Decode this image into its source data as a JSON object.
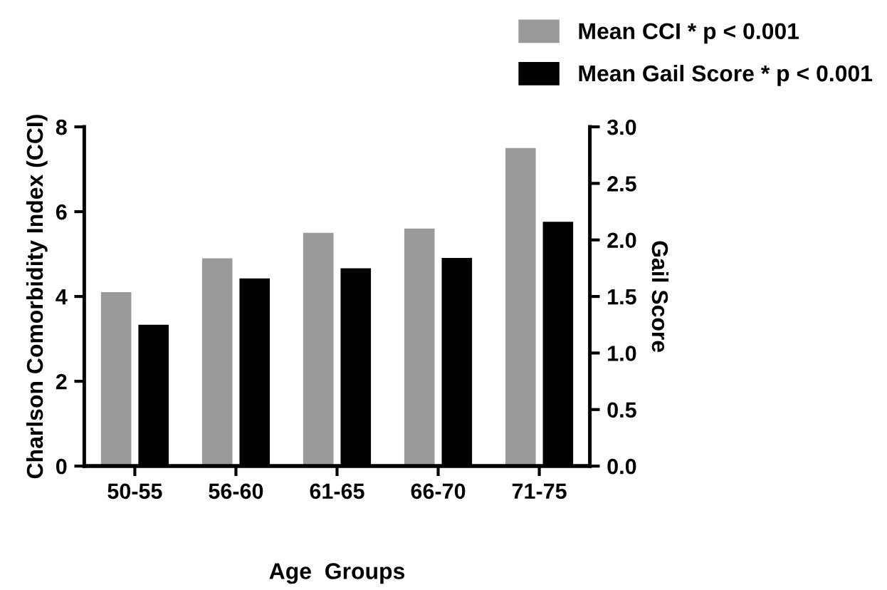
{
  "chart_data": {
    "type": "bar",
    "xlabel": "Age  Groups",
    "ylabel": "Charlson Comorbidity Index (CCI)",
    "y2label": "Gail Score",
    "categories": [
      "50-55",
      "56-60",
      "61-65",
      "66-70",
      "71-75"
    ],
    "series": [
      {
        "name": "Mean CCI * p < 0.001",
        "color": "#9a9a9a",
        "values": [
          4.1,
          4.9,
          5.5,
          5.6,
          7.5
        ]
      },
      {
        "name": "Mean Gail Score * p < 0.001",
        "color": "#000000",
        "values": [
          1.25,
          1.66,
          1.75,
          1.84,
          2.16
        ],
        "axis": "y2"
      }
    ],
    "ylim": [
      0,
      8
    ],
    "yticks": [
      0,
      2,
      4,
      6,
      8
    ],
    "y2lim": [
      0,
      3
    ],
    "y2ticks": [
      {
        "value": 0,
        "label": "0.0"
      },
      {
        "value": 0.5,
        "label": "0.5"
      },
      {
        "value": 1,
        "label": "1.0"
      },
      {
        "value": 1.5,
        "label": "1.5"
      },
      {
        "value": 2,
        "label": "2.0"
      },
      {
        "value": 2.5,
        "label": "2.5"
      },
      {
        "value": 3,
        "label": "3.0"
      }
    ],
    "grid": false,
    "legend": "top right"
  }
}
